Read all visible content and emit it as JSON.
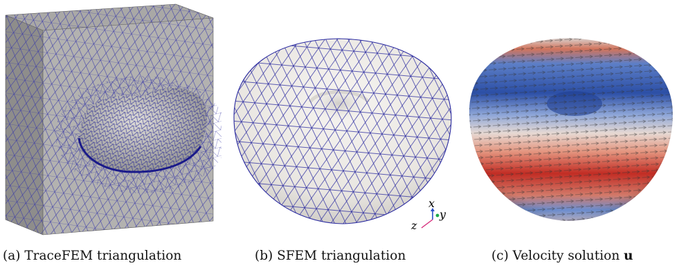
{
  "figure": {
    "panels": [
      {
        "id": "a",
        "caption_prefix": "(a) TraceFEM triangulation",
        "caption_symbol": ""
      },
      {
        "id": "b",
        "caption_prefix": "(b) SFEM triangulation",
        "caption_symbol": ""
      },
      {
        "id": "c",
        "caption_prefix": "(c) Velocity solution",
        "caption_symbol": "u"
      }
    ],
    "axis_triad": {
      "x": "x",
      "y": "y",
      "z": "z"
    },
    "colors": {
      "mesh_line": "#2a2aa0",
      "surface": "#efedea",
      "hot": "#c8312a",
      "cold": "#2f5fb8"
    }
  }
}
